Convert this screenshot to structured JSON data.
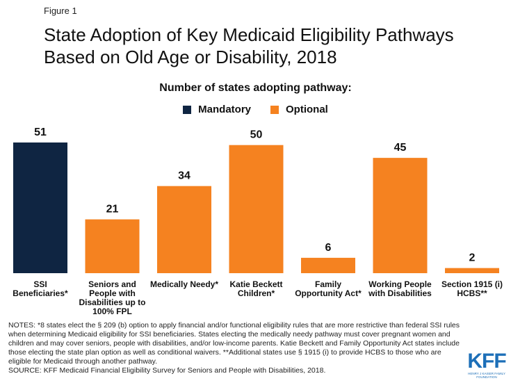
{
  "figure_label": "Figure 1",
  "title": "State Adoption of Key Medicaid Eligibility Pathways Based on Old Age or Disability, 2018",
  "colors": {
    "mandatory": "#0f2542",
    "optional": "#f58220"
  },
  "chart_data": {
    "type": "bar",
    "title": "Number of states adopting pathway:",
    "xlabel": "",
    "ylabel": "",
    "ylim": [
      0,
      51
    ],
    "legend": [
      {
        "name": "Mandatory",
        "color": "#0f2542"
      },
      {
        "name": "Optional",
        "color": "#f58220"
      }
    ],
    "categories": [
      [
        "SSI",
        "Beneficiaries*"
      ],
      [
        "Seniors and",
        "People with",
        "Disabilities up to",
        "100% FPL"
      ],
      [
        "Medically Needy*"
      ],
      [
        "Katie Beckett",
        "Children*"
      ],
      [
        "Family",
        "Opportunity Act*"
      ],
      [
        "Working People",
        "with Disabilities"
      ],
      [
        "Section 1915 (i)",
        "HCBS**"
      ]
    ],
    "values": [
      51,
      21,
      34,
      50,
      6,
      45,
      2
    ],
    "series_type": [
      "Mandatory",
      "Optional",
      "Optional",
      "Optional",
      "Optional",
      "Optional",
      "Optional"
    ]
  },
  "notes": "NOTES: *8 states elect the § 209 (b) option to apply financial and/or functional eligibility rules that are more restrictive than federal SSI rules when determining Medicaid eligibility for SSI beneficiaries. States electing the medically needy pathway must cover pregnant women and children and may cover seniors, people with disabilities, and/or low-income parents. Katie Beckett and Family Opportunity Act states include those electing the state plan option as well as conditional waivers. **Additional states use § 1915 (i) to provide HCBS to those who are eligible for Medicaid through another pathway.",
  "source": "SOURCE: KFF Medicaid Financial Eligibility Survey for Seniors and People with Disabilities, 2018.",
  "logo": {
    "mark": "KFF",
    "sub": "HENRY J KAISER FAMILY FOUNDATION"
  }
}
